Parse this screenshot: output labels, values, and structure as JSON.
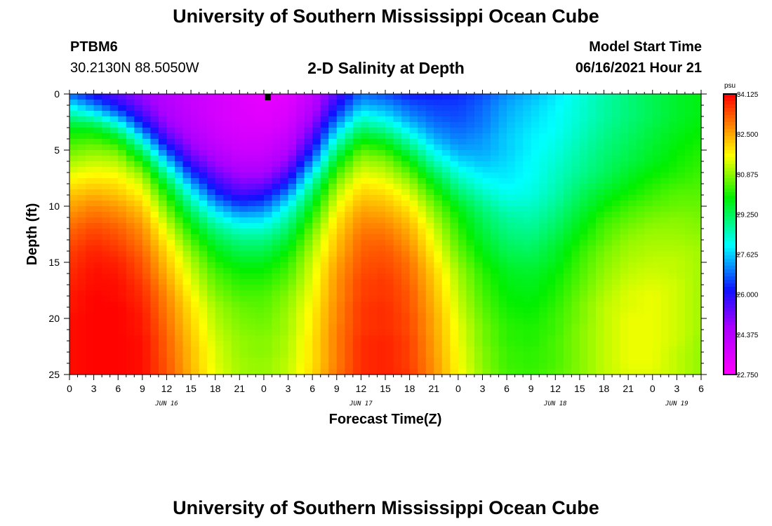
{
  "page": {
    "title_top": "University of Southern Mississippi Ocean Cube",
    "title_bottom": "University of Southern Mississippi Ocean Cube",
    "station_id": "PTBM6",
    "station_coords": "30.2130N  88.5050W",
    "plot_title": "2-D Salinity at Depth",
    "model_start_label": "Model Start Time",
    "model_start_value": "06/16/2021 Hour 21"
  },
  "chart_data": {
    "type": "heatmap",
    "title": "2-D Salinity at Depth",
    "xlabel": "Forecast Time(Z)",
    "ylabel": "Depth (ft)",
    "x_range_hours": [
      0,
      78
    ],
    "y_range": [
      0,
      25
    ],
    "y_ticks": [
      "0",
      "5",
      "10",
      "15",
      "20",
      "25"
    ],
    "x_ticks": [
      "0",
      "3",
      "6",
      "9",
      "12",
      "15",
      "18",
      "21",
      "0",
      "3",
      "6",
      "9",
      "12",
      "15",
      "18",
      "21",
      "0",
      "3",
      "6",
      "9",
      "12",
      "15",
      "18",
      "21",
      "0",
      "3",
      "6"
    ],
    "date_labels": [
      {
        "label": "JUN 16",
        "hour": 12
      },
      {
        "label": "JUN 17",
        "hour": 36
      },
      {
        "label": "JUN 18",
        "hour": 60
      },
      {
        "label": "JUN 19",
        "hour": 75
      }
    ],
    "marker_hour": 24.5,
    "colorbar": {
      "unit": "psu",
      "min": 22.75,
      "max": 34.125,
      "labels": [
        "34.125",
        "32.500",
        "30.875",
        "29.250",
        "27.625",
        "26.000",
        "24.375",
        "22.750"
      ]
    },
    "salinity_grid": {
      "depths_ft": [
        0,
        1,
        2,
        3,
        4,
        5,
        6,
        7,
        8,
        9,
        10,
        11,
        12,
        13,
        14,
        15,
        16,
        17,
        18,
        19,
        20,
        21,
        22,
        23,
        24,
        25
      ],
      "hours": [
        0,
        3,
        6,
        9,
        12,
        15,
        18,
        21,
        24,
        27,
        30,
        33,
        36,
        39,
        42,
        45,
        48,
        51,
        54,
        57,
        60,
        63,
        66,
        69,
        72,
        75,
        78
      ],
      "values": [
        [
          26.8,
          26.0,
          25.4,
          24.8,
          24.3,
          24.0,
          23.7,
          23.5,
          23.3,
          23.4,
          24.1,
          25.5,
          26.9,
          26.6,
          26.2,
          26.2,
          26.3,
          26.6,
          27.1,
          27.4,
          27.8,
          28.2,
          28.6,
          29.0,
          29.3,
          29.6,
          29.8
        ],
        [
          27.9,
          27.0,
          26.0,
          25.1,
          24.4,
          24.0,
          23.7,
          23.5,
          23.3,
          23.5,
          24.3,
          26.0,
          27.4,
          27.2,
          26.7,
          26.5,
          26.5,
          26.8,
          27.3,
          27.6,
          27.9,
          28.3,
          28.7,
          29.0,
          29.3,
          29.6,
          29.8
        ],
        [
          28.8,
          28.3,
          27.2,
          25.7,
          24.6,
          24.1,
          23.7,
          23.5,
          23.4,
          23.6,
          24.6,
          26.6,
          28.2,
          27.8,
          27.1,
          26.7,
          26.6,
          26.9,
          27.4,
          27.7,
          28.0,
          28.3,
          28.7,
          29.0,
          29.3,
          29.6,
          29.8
        ],
        [
          29.7,
          29.6,
          28.6,
          26.6,
          25.0,
          24.3,
          23.8,
          23.6,
          23.5,
          23.8,
          25.1,
          27.4,
          29.0,
          28.6,
          27.7,
          27.0,
          26.8,
          27.0,
          27.5,
          27.8,
          28.0,
          28.4,
          28.8,
          29.1,
          29.4,
          29.7,
          29.9
        ],
        [
          30.2,
          30.3,
          29.8,
          27.8,
          25.6,
          24.6,
          24.0,
          23.7,
          23.7,
          24.1,
          25.6,
          28.2,
          29.8,
          29.5,
          28.4,
          27.4,
          27.0,
          27.2,
          27.6,
          27.9,
          28.1,
          28.5,
          28.9,
          29.2,
          29.5,
          29.8,
          30.0
        ],
        [
          30.6,
          30.8,
          30.6,
          29.0,
          26.5,
          25.0,
          24.3,
          23.9,
          23.9,
          24.4,
          26.2,
          29.0,
          30.5,
          30.2,
          29.2,
          27.9,
          27.3,
          27.3,
          27.6,
          27.9,
          28.2,
          28.6,
          29.0,
          29.3,
          29.6,
          29.9,
          30.1
        ],
        [
          31.0,
          31.2,
          31.1,
          30.0,
          27.6,
          25.6,
          24.7,
          24.2,
          24.2,
          24.9,
          27.0,
          29.7,
          31.0,
          30.8,
          29.9,
          28.5,
          27.7,
          27.5,
          27.7,
          28.0,
          28.3,
          28.7,
          29.1,
          29.4,
          29.7,
          30.0,
          30.2
        ],
        [
          31.4,
          31.6,
          31.5,
          30.8,
          28.6,
          26.4,
          25.2,
          24.6,
          24.6,
          25.5,
          27.9,
          30.3,
          31.4,
          31.2,
          30.5,
          29.2,
          28.2,
          27.8,
          27.8,
          28.0,
          28.4,
          28.8,
          29.2,
          29.6,
          29.9,
          30.1,
          30.3
        ],
        [
          31.8,
          32.0,
          31.9,
          31.3,
          29.5,
          27.3,
          25.8,
          25.1,
          25.2,
          26.3,
          28.7,
          30.8,
          31.8,
          31.6,
          31.0,
          29.8,
          28.7,
          28.1,
          27.9,
          28.1,
          28.5,
          29.0,
          29.4,
          29.8,
          30.1,
          30.3,
          30.4
        ],
        [
          32.2,
          32.4,
          32.2,
          31.7,
          30.1,
          28.2,
          26.5,
          25.7,
          26.0,
          27.2,
          29.3,
          31.2,
          32.1,
          32.0,
          31.4,
          30.3,
          29.2,
          28.5,
          28.1,
          28.2,
          28.6,
          29.2,
          29.7,
          30.0,
          30.3,
          30.5,
          30.5
        ],
        [
          32.5,
          32.8,
          32.6,
          32.1,
          30.6,
          28.9,
          27.4,
          26.6,
          26.8,
          28.0,
          29.8,
          31.5,
          32.4,
          32.3,
          31.8,
          30.7,
          29.7,
          28.9,
          28.4,
          28.4,
          28.8,
          29.4,
          29.9,
          30.3,
          30.5,
          30.6,
          30.6
        ],
        [
          32.8,
          33.1,
          32.9,
          32.4,
          31.0,
          29.5,
          28.2,
          27.5,
          27.6,
          28.6,
          30.2,
          31.8,
          32.7,
          32.6,
          32.1,
          31.0,
          30.0,
          29.2,
          28.7,
          28.6,
          29.0,
          29.6,
          30.2,
          30.5,
          30.7,
          30.8,
          30.7
        ],
        [
          33.1,
          33.4,
          33.2,
          32.7,
          31.4,
          30.0,
          28.9,
          28.3,
          28.3,
          29.1,
          30.6,
          32.0,
          32.9,
          32.9,
          32.4,
          31.3,
          30.2,
          29.4,
          28.9,
          28.8,
          29.2,
          29.8,
          30.4,
          30.7,
          30.9,
          30.9,
          30.8
        ],
        [
          33.3,
          33.6,
          33.4,
          32.9,
          31.7,
          30.4,
          29.4,
          28.9,
          28.9,
          29.5,
          30.9,
          32.2,
          33.1,
          33.1,
          32.6,
          31.5,
          30.4,
          29.6,
          29.1,
          29.0,
          29.4,
          30.0,
          30.5,
          30.9,
          31.0,
          31.0,
          30.9
        ],
        [
          33.5,
          33.8,
          33.6,
          33.1,
          32.0,
          30.8,
          29.8,
          29.3,
          29.3,
          29.9,
          31.1,
          32.3,
          33.2,
          33.3,
          32.8,
          31.7,
          30.6,
          29.8,
          29.3,
          29.2,
          29.6,
          30.2,
          30.7,
          31.0,
          31.1,
          31.1,
          31.0
        ],
        [
          33.6,
          33.9,
          33.8,
          33.3,
          32.2,
          31.1,
          30.1,
          29.7,
          29.7,
          30.2,
          31.3,
          32.5,
          33.3,
          33.4,
          33.0,
          31.9,
          30.8,
          30.0,
          29.5,
          29.4,
          29.7,
          30.3,
          30.8,
          31.1,
          31.2,
          31.2,
          31.0
        ],
        [
          33.7,
          34.0,
          33.9,
          33.4,
          32.4,
          31.3,
          30.4,
          30.0,
          30.0,
          30.4,
          31.4,
          32.6,
          33.4,
          33.5,
          33.1,
          32.1,
          31.0,
          30.2,
          29.7,
          29.6,
          29.9,
          30.4,
          30.9,
          31.2,
          31.3,
          31.2,
          31.0
        ],
        [
          33.8,
          34.0,
          34.0,
          33.6,
          32.6,
          31.5,
          30.6,
          30.2,
          30.2,
          30.6,
          31.5,
          32.7,
          33.5,
          33.6,
          33.2,
          32.2,
          31.1,
          30.3,
          29.8,
          29.7,
          30.0,
          30.5,
          31.0,
          31.3,
          31.4,
          31.3,
          31.0
        ],
        [
          33.9,
          34.1,
          34.0,
          33.7,
          32.8,
          31.7,
          30.8,
          30.4,
          30.4,
          30.8,
          31.6,
          32.7,
          33.5,
          33.6,
          33.3,
          32.3,
          31.2,
          30.4,
          29.9,
          29.8,
          30.1,
          30.6,
          31.1,
          31.4,
          31.5,
          31.3,
          31.0
        ],
        [
          33.9,
          34.1,
          34.1,
          33.8,
          32.9,
          31.9,
          31.0,
          30.6,
          30.5,
          30.9,
          31.7,
          32.8,
          33.6,
          33.7,
          33.3,
          32.4,
          31.3,
          30.5,
          30.0,
          29.9,
          30.2,
          30.7,
          31.2,
          31.4,
          31.5,
          31.3,
          31.0
        ],
        [
          34.0,
          34.1,
          34.1,
          33.9,
          33.0,
          32.0,
          31.1,
          30.7,
          30.6,
          31.0,
          31.8,
          32.8,
          33.6,
          33.7,
          33.4,
          32.5,
          31.4,
          30.6,
          30.1,
          30.0,
          30.3,
          30.7,
          31.2,
          31.5,
          31.5,
          31.3,
          31.0
        ],
        [
          34.0,
          34.1,
          34.1,
          33.9,
          33.1,
          32.1,
          31.2,
          30.8,
          30.7,
          31.0,
          31.8,
          32.9,
          33.6,
          33.7,
          33.4,
          32.5,
          31.5,
          30.7,
          30.2,
          30.1,
          30.3,
          30.8,
          31.2,
          31.5,
          31.5,
          31.3,
          31.0
        ],
        [
          34.0,
          34.1,
          34.1,
          34.0,
          33.2,
          32.2,
          31.3,
          30.9,
          30.8,
          31.1,
          31.9,
          32.9,
          33.7,
          33.8,
          33.5,
          32.6,
          31.5,
          30.7,
          30.2,
          30.1,
          30.4,
          30.8,
          31.2,
          31.5,
          31.5,
          31.3,
          30.9
        ],
        [
          34.0,
          34.1,
          34.1,
          34.0,
          33.2,
          32.3,
          31.4,
          30.9,
          30.8,
          31.1,
          31.9,
          32.9,
          33.7,
          33.8,
          33.5,
          32.6,
          31.6,
          30.8,
          30.3,
          30.2,
          30.4,
          30.8,
          31.2,
          31.5,
          31.5,
          31.2,
          30.9
        ],
        [
          34.0,
          34.1,
          34.1,
          34.0,
          33.3,
          32.3,
          31.4,
          31.0,
          30.9,
          31.2,
          31.9,
          32.9,
          33.7,
          33.8,
          33.5,
          32.7,
          31.6,
          30.8,
          30.3,
          30.2,
          30.4,
          30.8,
          31.2,
          31.5,
          31.5,
          31.2,
          30.9
        ],
        [
          34.0,
          34.1,
          34.1,
          34.0,
          33.3,
          32.4,
          31.5,
          31.0,
          30.9,
          31.2,
          32.0,
          33.0,
          33.7,
          33.8,
          33.6,
          32.7,
          31.7,
          30.9,
          30.4,
          30.3,
          30.5,
          30.8,
          31.2,
          31.4,
          31.4,
          31.2,
          30.9
        ]
      ]
    }
  }
}
